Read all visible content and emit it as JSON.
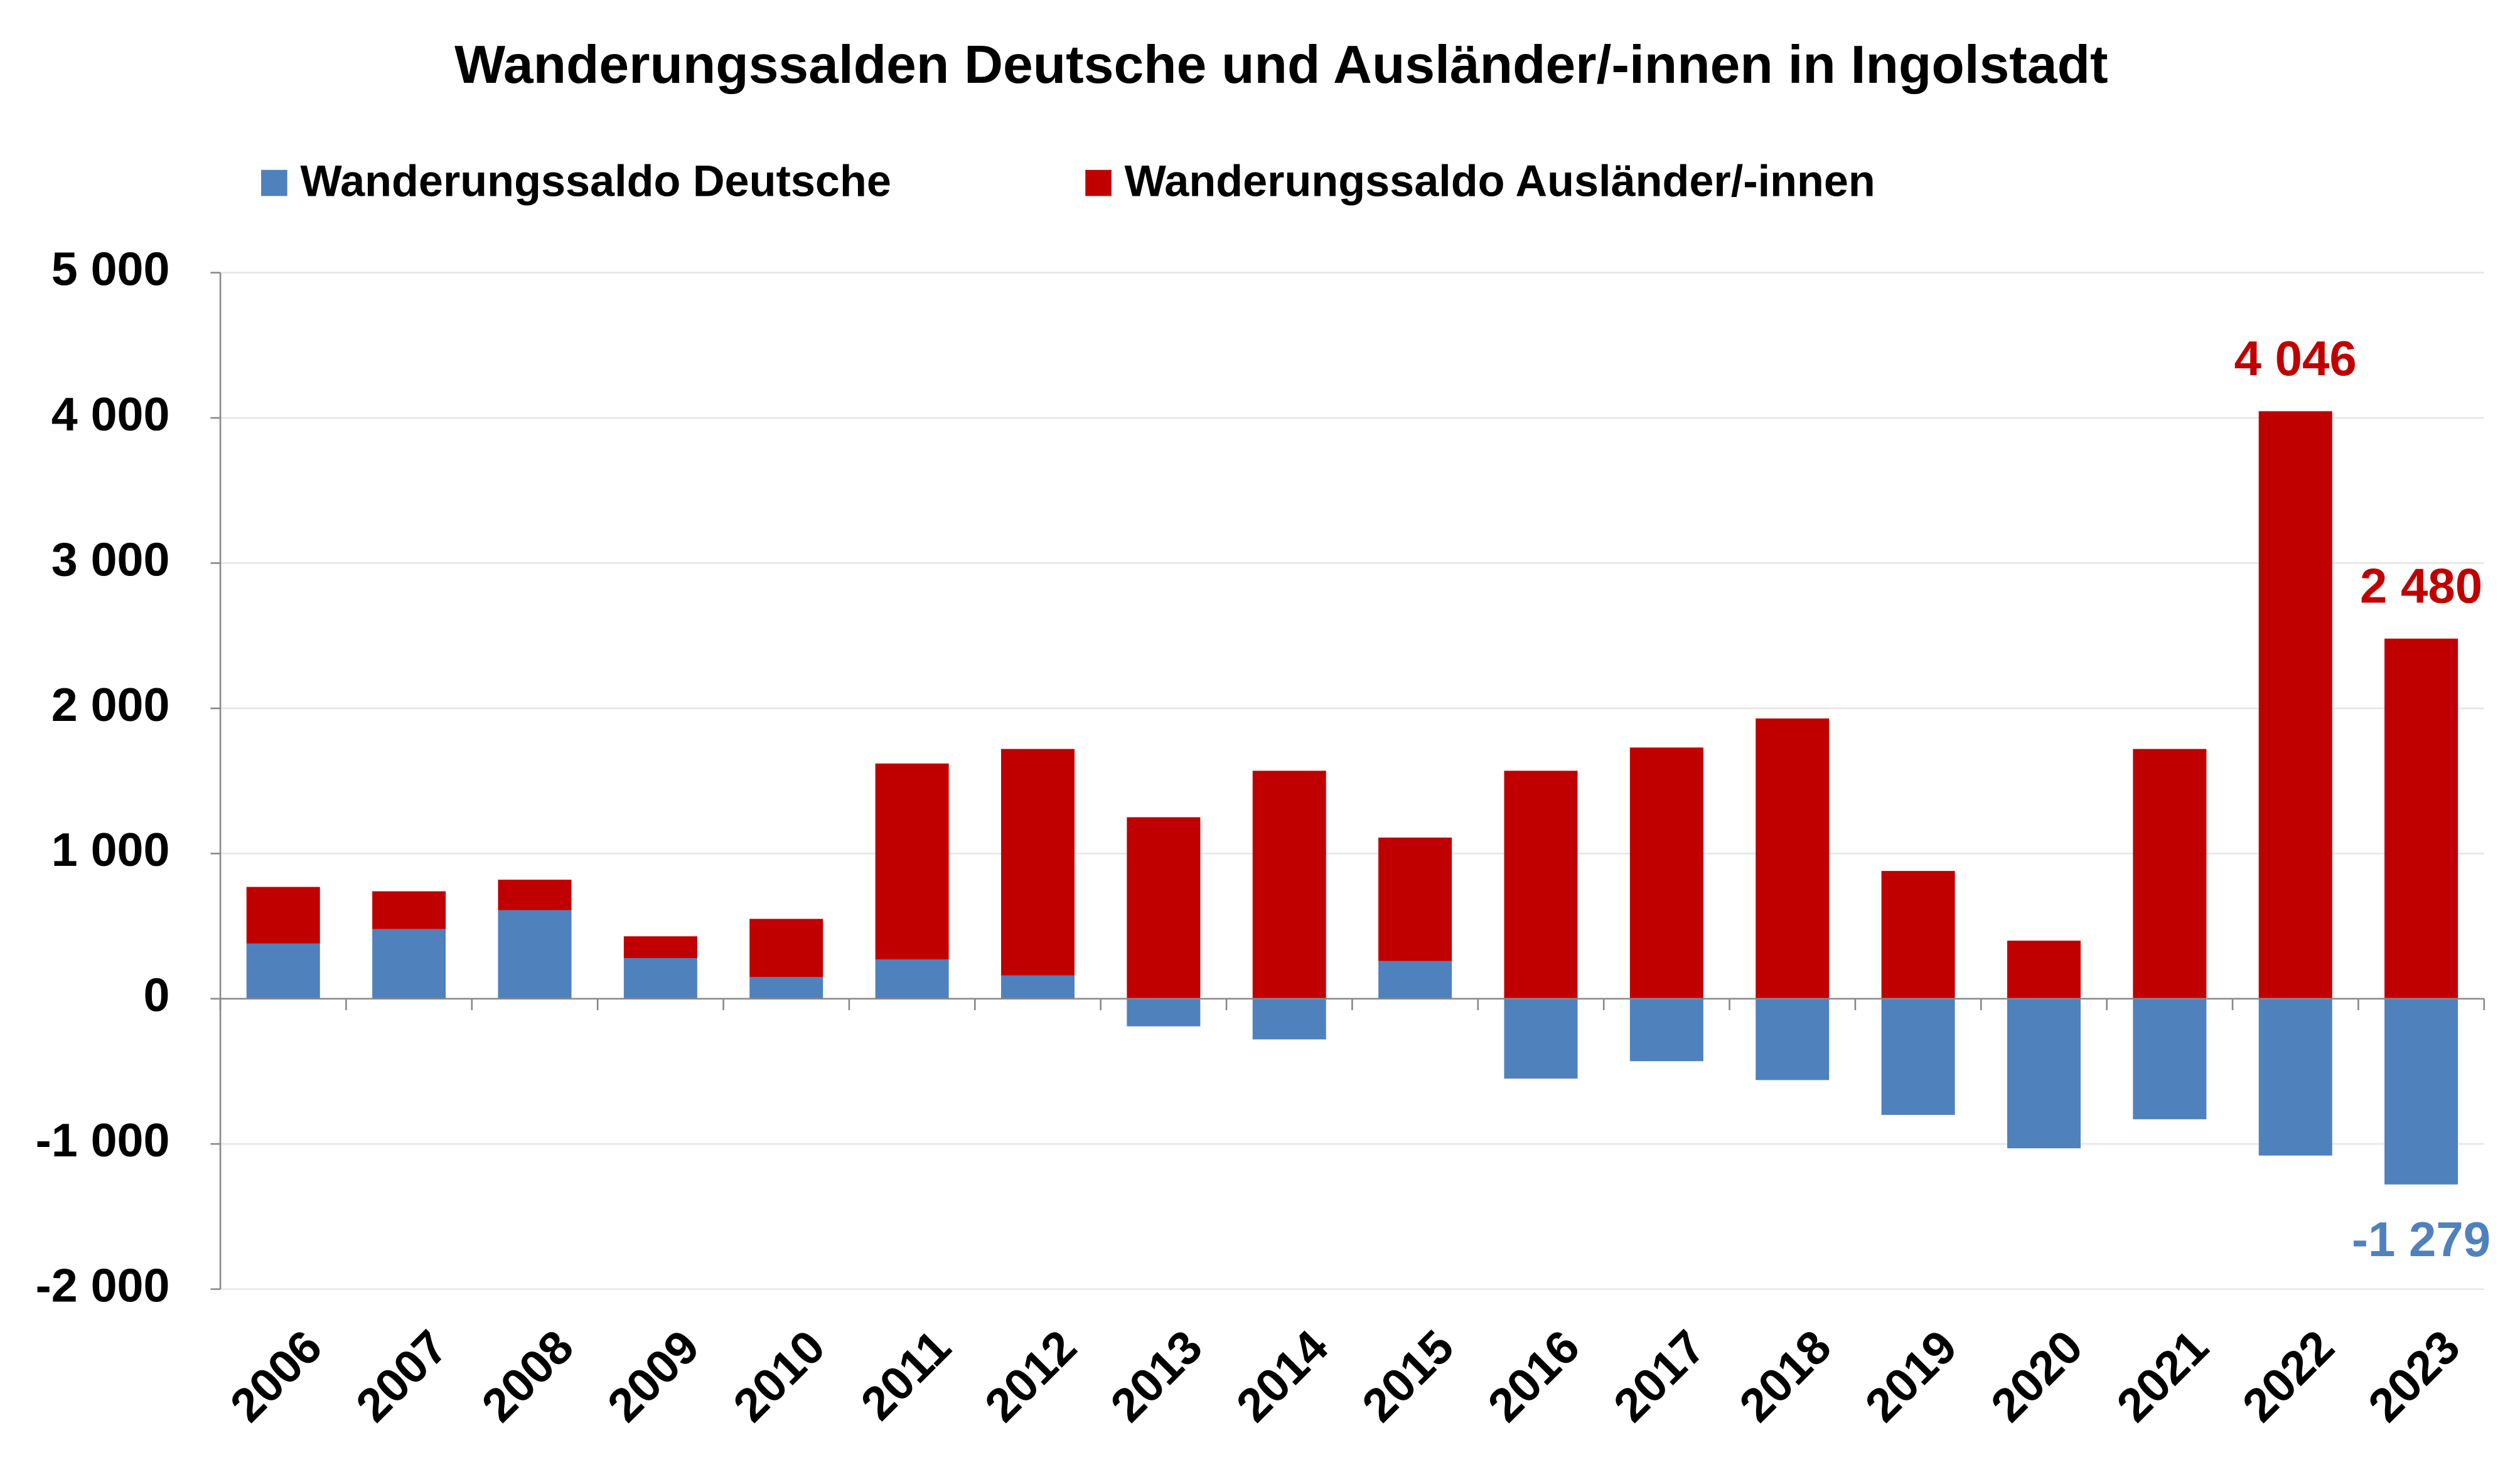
{
  "chart_data": {
    "type": "stacked-bar",
    "title": "Wanderungssalden Deutsche und Ausländer/-innen in Ingolstadt",
    "categories": [
      "2006",
      "2007",
      "2008",
      "2009",
      "2010",
      "2011",
      "2012",
      "2013",
      "2014",
      "2015",
      "2016",
      "2017",
      "2018",
      "2019",
      "2020",
      "2021",
      "2022",
      "2023"
    ],
    "series": [
      {
        "name": "Wanderungssaldo Deutsche",
        "color": "#4f81bd",
        "values": [
          380,
          480,
          610,
          280,
          150,
          270,
          160,
          -190,
          -280,
          260,
          -550,
          -430,
          -560,
          -800,
          -1030,
          -830,
          -1080,
          -1279
        ],
        "value_labels": [
          null,
          null,
          null,
          null,
          null,
          null,
          null,
          null,
          null,
          null,
          null,
          null,
          null,
          null,
          null,
          null,
          null,
          "-1 279"
        ]
      },
      {
        "name": "Wanderungssaldo Ausländer/-innen",
        "color": "#c00000",
        "values": [
          390,
          260,
          210,
          150,
          400,
          1350,
          1560,
          1250,
          1570,
          850,
          1570,
          1730,
          1930,
          880,
          400,
          1720,
          4046,
          2480
        ],
        "value_labels": [
          null,
          null,
          null,
          null,
          null,
          null,
          null,
          null,
          null,
          null,
          null,
          null,
          null,
          null,
          null,
          null,
          "4 046",
          "2 480"
        ]
      }
    ],
    "ylim": [
      -2000,
      5000
    ],
    "yticks": [
      {
        "value": -2000,
        "label": "-2 000"
      },
      {
        "value": -1000,
        "label": "-1 000"
      },
      0,
      {
        "value": 1000,
        "label": "1 000"
      },
      {
        "value": 2000,
        "label": "2 000"
      },
      {
        "value": 3000,
        "label": "3 000"
      },
      {
        "value": 4000,
        "label": "4 000"
      },
      {
        "value": 5000,
        "label": "5 000"
      }
    ],
    "grid": true
  }
}
